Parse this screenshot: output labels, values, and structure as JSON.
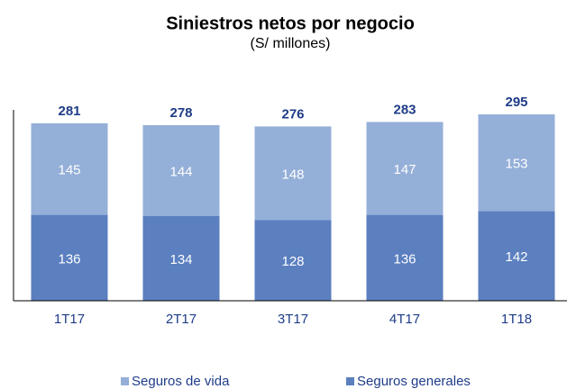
{
  "chart_data": {
    "type": "stacked_bar",
    "title": "Siniestros netos por negocio",
    "subtitle": "(S/ millones)",
    "categories": [
      "1T17",
      "2T17",
      "3T17",
      "4T17",
      "1T18"
    ],
    "series": [
      {
        "name": "Seguros generales",
        "color": "#5b7fbf",
        "values": [
          136,
          134,
          128,
          136,
          142
        ]
      },
      {
        "name": "Seguros de vida",
        "color": "#94afd8",
        "values": [
          145,
          144,
          148,
          147,
          153
        ]
      }
    ],
    "totals": [
      281,
      278,
      276,
      283,
      295
    ],
    "legend_order": [
      1,
      0
    ]
  }
}
